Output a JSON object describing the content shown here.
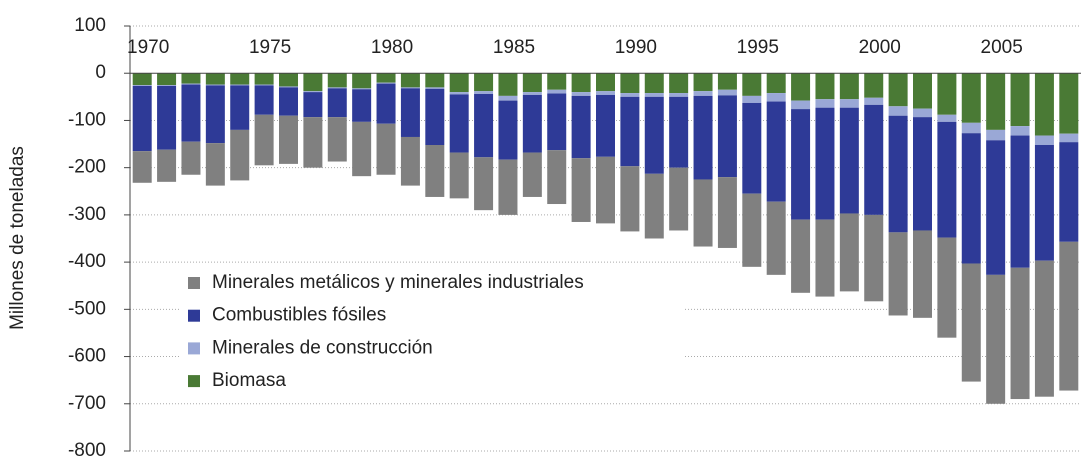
{
  "chart_data": {
    "type": "stacked-bar",
    "y_label": "Millones de toneladas",
    "categories": [
      "1970",
      null,
      null,
      null,
      null,
      "1975",
      null,
      null,
      null,
      null,
      "1980",
      null,
      null,
      null,
      null,
      "1985",
      null,
      null,
      null,
      null,
      "1990",
      null,
      null,
      null,
      null,
      "1995",
      null,
      null,
      null,
      null,
      "2000",
      null,
      null,
      null,
      null,
      "2005",
      null,
      null,
      null
    ],
    "series": [
      {
        "name": "Minerales metálicos y minerales industriales",
        "color": "#808080",
        "values": [
          -67,
          -68,
          -70,
          -90,
          -107,
          -107,
          -102,
          -107,
          -94,
          -115,
          -108,
          -103,
          -110,
          -97,
          -112,
          -117,
          -94,
          -114,
          -135,
          -141,
          -138,
          -137,
          -133,
          -142,
          -150,
          -155,
          -155,
          -155,
          -163,
          -165,
          -183,
          -176,
          -185,
          -212,
          -250,
          -273,
          -278,
          -288,
          -315
        ]
      },
      {
        "name": "Combustibles fósiles",
        "color": "#2e3a97",
        "values": [
          -138,
          -135,
          -121,
          -122,
          -94,
          -62,
          -60,
          -53,
          -61,
          -69,
          -85,
          -103,
          -119,
          -123,
          -134,
          -125,
          -122,
          -120,
          -132,
          -131,
          -147,
          -163,
          -150,
          -177,
          -173,
          -192,
          -212,
          -234,
          -237,
          -224,
          -233,
          -247,
          -240,
          -245,
          -276,
          -285,
          -280,
          -245,
          -211
        ]
      },
      {
        "name": "Minerales de construcción",
        "color": "#9aa8d6",
        "values": [
          -2,
          -2,
          -2,
          -2,
          -2,
          -2,
          -2,
          -2,
          -2,
          -2,
          -2,
          -2,
          -3,
          -5,
          -6,
          -10,
          -6,
          -8,
          -8,
          -8,
          -8,
          -8,
          -8,
          -10,
          -12,
          -15,
          -18,
          -18,
          -18,
          -18,
          -15,
          -20,
          -18,
          -15,
          -22,
          -22,
          -20,
          -20,
          -18
        ]
      },
      {
        "name": "Biomasa",
        "color": "#4a7a35",
        "values": [
          -25,
          -25,
          -22,
          -24,
          -24,
          -24,
          -28,
          -38,
          -30,
          -32,
          -20,
          -30,
          -30,
          -40,
          -38,
          -48,
          -40,
          -35,
          -40,
          -38,
          -42,
          -42,
          -42,
          -38,
          -35,
          -48,
          -42,
          -58,
          -55,
          -55,
          -52,
          -70,
          -75,
          -88,
          -105,
          -120,
          -112,
          -132,
          -128
        ]
      }
    ],
    "ylim": [
      -800,
      100
    ],
    "yticks": [
      100,
      0,
      -100,
      -200,
      -300,
      -400,
      -500,
      -600,
      -700,
      -800
    ],
    "grid": true
  }
}
